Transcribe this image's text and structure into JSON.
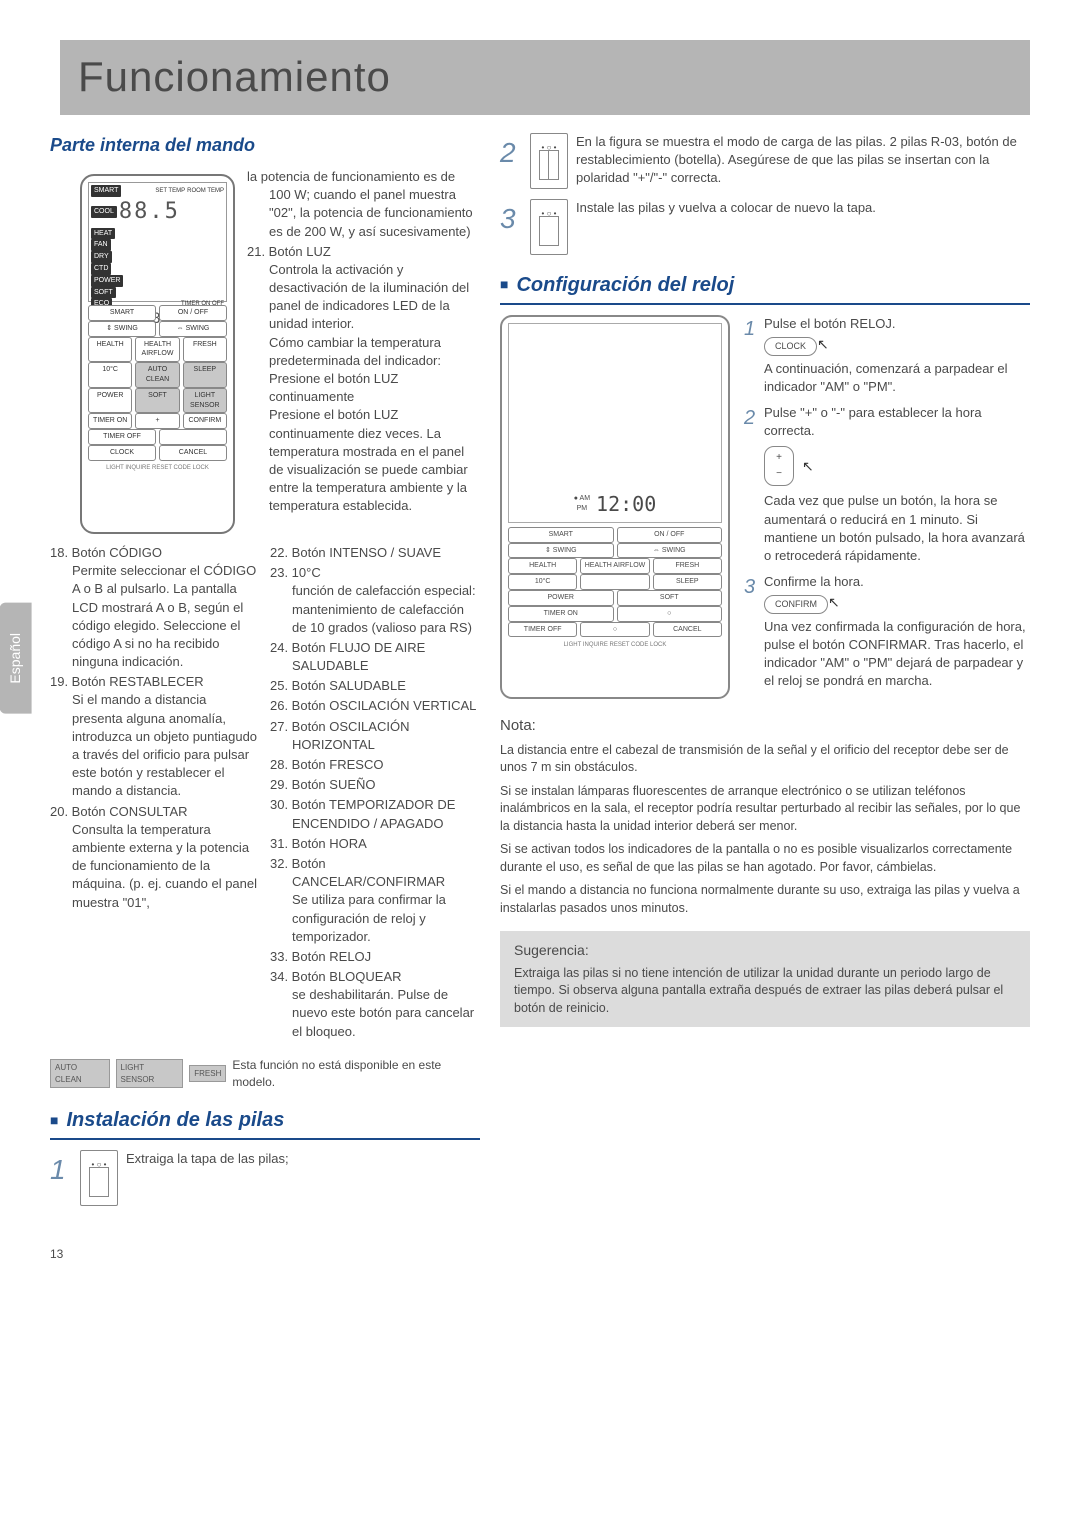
{
  "title": "Funcionamiento",
  "lang_tab": "Español",
  "page_number": "13",
  "left": {
    "heading": "Parte interna del mando",
    "remote_lcd": {
      "modes": [
        "SMART",
        "COOL",
        "HEAT",
        "FAN",
        "DRY",
        "CTD",
        "POWER",
        "SOFT",
        "ECO",
        "IFP"
      ],
      "set_temp_label": "SET TEMP",
      "room_temp_label": "ROOM TEMP",
      "digits_main": "88.5",
      "timer_label": "TIMER ON   OFF",
      "am": "AM",
      "pm": "PM",
      "digits_clock": "88:88"
    },
    "remote_buttons_left": [
      "SMART",
      "⇕ SWING",
      "HEALTH",
      "10°C",
      "POWER",
      "TIMER ON",
      "TIMER OFF",
      "CLOCK"
    ],
    "remote_buttons_right": [
      "ON / OFF",
      "⇔ SWING",
      "HEALTH AIRFLOW",
      "AUTO CLEAN",
      "SOFT",
      "+",
      "",
      "CANCEL"
    ],
    "remote_buttons_right_alt": [
      "",
      "",
      "FRESH",
      "SLEEP",
      "LIGHT SENSOR",
      "CONFIRM",
      "",
      ""
    ],
    "bottom_row": "LIGHT  INQUIRE  RESET  CODE    LOCK",
    "list_col1": [
      "18. Botón CÓDIGO\nPermite seleccionar el CÓDIGO A o B al pulsarlo. La pantalla LCD mostrará A o B, según el código elegido. Seleccione el código A si no ha recibido ninguna indicación.",
      "19. Botón RESTABLECER\nSi el mando a distancia presenta alguna anomalía, introduzca un objeto puntiagudo a través del orificio para pulsar este botón y restablecer el mando a distancia.",
      "20. Botón CONSULTAR\nConsulta la temperatura ambiente externa y la potencia de funcionamiento de la máquina. (p. ej. cuando el panel muestra \"01\","
    ],
    "list_col2": [
      "la potencia de funcionamiento es de 100 W; cuando el panel muestra \"02\", la potencia de funcionamiento es de 200 W, y así sucesivamente)",
      "21. Botón LUZ\nControla la activación y desactivación de la iluminación del panel de indicadores LED de la unidad interior.\nCómo cambiar la temperatura predeterminada del indicador:\nPresione el botón LUZ continuamente\nPresione el botón LUZ continuamente diez veces. La temperatura mostrada en el panel de visualización se puede cambiar entre la temperatura ambiente y la temperatura establecida.",
      "22. Botón INTENSO / SUAVE",
      "23. 10°C\nfunción de calefacción especial: mantenimiento de calefacción de 10 grados (valioso para RS)",
      "24. Botón FLUJO DE AIRE SALUDABLE",
      "25. Botón SALUDABLE",
      "26. Botón OSCILACIÓN VERTICAL",
      "27. Botón OSCILACIÓN HORIZONTAL",
      "28. Botón FRESCO",
      "29. Botón SUEÑO",
      "30. Botón TEMPORIZADOR DE ENCENDIDO / APAGADO",
      "31. Botón HORA",
      "32. Botón CANCELAR/CONFIRMAR\nSe utiliza para confirmar la configuración de reloj y temporizador.",
      "33. Botón RELOJ",
      "34. Botón BLOQUEAR\nse deshabilitarán. Pulse de nuevo este botón para cancelar el bloqueo."
    ],
    "na_badges": [
      "AUTO CLEAN",
      "LIGHT SENSOR",
      "FRESH"
    ],
    "na_text": "Esta función no está disponible en este modelo.",
    "battery_heading": "Instalación de las pilas",
    "battery_step1": "Extraiga la tapa de las pilas;"
  },
  "right": {
    "battery_step2": "En la figura se muestra el modo de carga de las pilas. 2 pilas R-03, botón de restablecimiento (botella). Asegúrese de que las pilas se insertan con la polaridad \"+\"/\"-\" correcta.",
    "battery_step3": "Instale las pilas y vuelva a colocar de nuevo la tapa.",
    "clock_heading": "Configuración del reloj",
    "remote_buttons_l": [
      "SMART",
      "⇕ SWING",
      "HEALTH",
      "10°C",
      "POWER",
      "TIMER ON",
      "TIMER OFF"
    ],
    "remote_buttons_r": [
      "ON / OFF",
      "⇔ SWING",
      "HEALTH AIRFLOW",
      "",
      "SOFT",
      "○",
      "○"
    ],
    "remote_buttons_r2": [
      "",
      "",
      "FRESH",
      "SLEEP",
      "",
      "",
      "CANCEL"
    ],
    "remote_bottom": "LIGHT  INQUIRE  RESET  CODE    LOCK",
    "clock_am": "AM",
    "clock_pm": "PM",
    "clock_time": "12:00",
    "step1_text": "Pulse el botón RELOJ.",
    "step1_badge": "CLOCK",
    "step1_body": "A continuación, comenzará a parpadear el indicador \"AM\" o \"PM\".",
    "step2_text": "Pulse \"+\" o \"-\" para establecer la hora correcta.",
    "step2_body": "Cada vez que pulse un botón, la hora se aumentará o reducirá en 1 minuto. Si mantiene un botón pulsado, la hora avanzará o retrocederá rápidamente.",
    "step3_text": "Confirme la hora.",
    "step3_badge": "CONFIRM",
    "step3_body": "Una vez confirmada la configuración de hora, pulse el botón CONFIRMAR. Tras hacerlo, el indicador \"AM\" o \"PM\" dejará de parpadear y el reloj se pondrá en marcha.",
    "nota_h": "Nota:",
    "nota": [
      "La distancia entre el cabezal de transmisión de la señal y el orificio del receptor debe ser de unos 7 m sin obstáculos.",
      "Si se instalan lámparas fluorescentes de arranque electrónico o se utilizan teléfonos inalámbricos en la sala, el receptor podría resultar perturbado al recibir las señales, por lo que la distancia hasta la unidad interior deberá ser menor.",
      "Si se activan todos los indicadores de la pantalla o no es posible visualizarlos correctamente durante el uso, es señal de que las pilas se han agotado. Por favor, cámbielas.",
      "Si el mando a distancia no funciona normalmente durante su uso, extraiga las pilas y vuelva a instalarlas pasados unos minutos."
    ],
    "tip_h": "Sugerencia:",
    "tip": "Extraiga las pilas si no tiene intención de utilizar la unidad durante un periodo largo de tiempo. Si observa alguna pantalla extraña después de extraer las pilas deberá pulsar el botón de reinicio."
  },
  "colors": {
    "title_bg": "#b5b5b5",
    "accent": "#1a4a8a",
    "step_num": "#6a8aaa",
    "tip_bg": "#dcdcdc"
  }
}
